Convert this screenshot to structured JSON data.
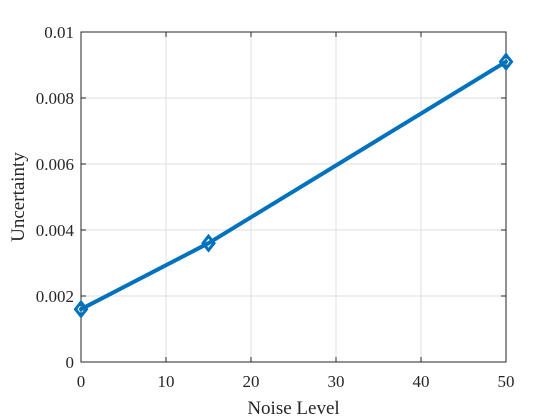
{
  "chart_data": {
    "type": "line",
    "title": "",
    "xlabel": "Noise Level",
    "ylabel": "Uncertainty",
    "xlim": [
      0,
      50
    ],
    "ylim": [
      0,
      0.01
    ],
    "xticks": [
      0,
      10,
      20,
      30,
      40,
      50
    ],
    "yticks": [
      0,
      0.002,
      0.004,
      0.006,
      0.008,
      0.01
    ],
    "xtick_labels": [
      "0",
      "10",
      "20",
      "30",
      "40",
      "50"
    ],
    "ytick_labels": [
      "0",
      "0.002",
      "0.004",
      "0.006",
      "0.008",
      "0.01"
    ],
    "grid": true,
    "legend": "none",
    "series": [
      {
        "x": [
          0,
          15,
          50
        ],
        "y": [
          0.0016,
          0.0036,
          0.0091
        ],
        "color": "#0072BD",
        "marker": "diamond"
      }
    ]
  }
}
